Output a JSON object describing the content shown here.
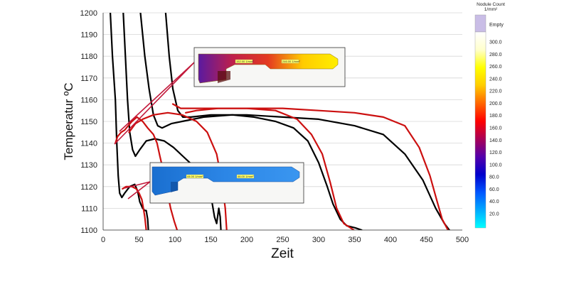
{
  "chart_data": {
    "type": "line",
    "xlabel": "Zeit",
    "ylabel": "Temperatur ºC",
    "xlim": [
      0,
      500
    ],
    "ylim": [
      1100,
      1200
    ],
    "x_ticks": [
      "0",
      "50",
      "100",
      "150",
      "200",
      "250",
      "300",
      "350",
      "400",
      "450",
      "500"
    ],
    "y_ticks": [
      "1100",
      "1110",
      "1120",
      "1130",
      "1140",
      "1150",
      "1160",
      "1170",
      "1180",
      "1190",
      "1200"
    ],
    "grid": "horizontal",
    "series": [
      {
        "color": "#000000",
        "points": [
          [
            10,
            1200
          ],
          [
            13,
            1180
          ],
          [
            17,
            1160
          ],
          [
            19,
            1140
          ],
          [
            21,
            1125
          ],
          [
            23,
            1117
          ],
          [
            26,
            1115
          ],
          [
            30,
            1117
          ],
          [
            37,
            1120
          ],
          [
            44,
            1121
          ],
          [
            48,
            1118
          ],
          [
            51,
            1113
          ],
          [
            55,
            1110
          ],
          [
            58,
            1109
          ],
          [
            60,
            1109
          ],
          [
            62,
            1105
          ],
          [
            63,
            1100
          ]
        ]
      },
      {
        "color": "#000000",
        "points": [
          [
            28,
            1200
          ],
          [
            31,
            1180
          ],
          [
            34,
            1160
          ],
          [
            37,
            1145
          ],
          [
            41,
            1137
          ],
          [
            45,
            1134
          ],
          [
            51,
            1137
          ],
          [
            60,
            1141
          ],
          [
            72,
            1142
          ],
          [
            85,
            1141
          ],
          [
            98,
            1138
          ],
          [
            111,
            1134
          ],
          [
            124,
            1130
          ],
          [
            136,
            1126
          ],
          [
            144,
            1123
          ],
          [
            149,
            1118
          ],
          [
            152,
            1112
          ],
          [
            155,
            1106
          ],
          [
            158,
            1103
          ],
          [
            161,
            1110
          ],
          [
            163,
            1106
          ],
          [
            164,
            1100
          ]
        ]
      },
      {
        "color": "#000000",
        "points": [
          [
            52,
            1200
          ],
          [
            58,
            1180
          ],
          [
            64,
            1165
          ],
          [
            70,
            1153
          ],
          [
            76,
            1148
          ],
          [
            82,
            1147
          ],
          [
            95,
            1149
          ],
          [
            110,
            1150
          ],
          [
            140,
            1152
          ],
          [
            180,
            1153
          ],
          [
            210,
            1152
          ],
          [
            240,
            1150
          ],
          [
            265,
            1147
          ],
          [
            285,
            1141
          ],
          [
            300,
            1131
          ],
          [
            312,
            1120
          ],
          [
            320,
            1112
          ],
          [
            330,
            1105
          ],
          [
            339,
            1102
          ],
          [
            351,
            1101
          ],
          [
            360,
            1100
          ]
        ]
      },
      {
        "color": "#000000",
        "points": [
          [
            87,
            1200
          ],
          [
            92,
            1180
          ],
          [
            97,
            1165
          ],
          [
            104,
            1155
          ],
          [
            111,
            1152
          ],
          [
            122,
            1152
          ],
          [
            150,
            1153
          ],
          [
            200,
            1153
          ],
          [
            250,
            1152
          ],
          [
            300,
            1151
          ],
          [
            350,
            1148
          ],
          [
            390,
            1144
          ],
          [
            420,
            1135
          ],
          [
            445,
            1123
          ],
          [
            463,
            1110
          ],
          [
            475,
            1103
          ],
          [
            482,
            1100
          ]
        ]
      },
      {
        "color": "#cc1010",
        "points": [
          [
            17,
            1140
          ],
          [
            20,
            1143
          ],
          [
            25,
            1145
          ],
          [
            30,
            1146
          ],
          [
            35,
            1148
          ],
          [
            40,
            1150
          ],
          [
            47,
            1152
          ],
          [
            55,
            1150
          ],
          [
            62,
            1147
          ],
          [
            70,
            1144
          ],
          [
            75,
            1140
          ],
          [
            79,
            1134
          ],
          [
            84,
            1127
          ],
          [
            89,
            1118
          ],
          [
            94,
            1110
          ],
          [
            99,
            1104
          ],
          [
            103,
            1100
          ]
        ]
      },
      {
        "color": "#cc1010",
        "points": [
          [
            27,
            1119
          ],
          [
            32,
            1120
          ],
          [
            40,
            1120
          ],
          [
            46,
            1119
          ],
          [
            50,
            1117
          ],
          [
            54,
            1114
          ],
          [
            56,
            1110
          ],
          [
            58,
            1106
          ],
          [
            59,
            1103
          ],
          [
            60,
            1100
          ]
        ]
      },
      {
        "color": "#cc1010",
        "points": [
          [
            36,
            1145
          ],
          [
            45,
            1149
          ],
          [
            55,
            1151
          ],
          [
            70,
            1153
          ],
          [
            90,
            1154
          ],
          [
            110,
            1153
          ],
          [
            130,
            1150
          ],
          [
            145,
            1145
          ],
          [
            158,
            1135
          ],
          [
            165,
            1123
          ],
          [
            170,
            1110
          ],
          [
            172,
            1100
          ]
        ]
      },
      {
        "color": "#cc1010",
        "points": [
          [
            115,
            1154
          ],
          [
            130,
            1155
          ],
          [
            160,
            1156
          ],
          [
            200,
            1156
          ],
          [
            240,
            1155
          ],
          [
            270,
            1151
          ],
          [
            290,
            1144
          ],
          [
            305,
            1135
          ],
          [
            316,
            1122
          ],
          [
            325,
            1110
          ],
          [
            335,
            1103
          ],
          [
            349,
            1100
          ]
        ]
      },
      {
        "color": "#cc1010",
        "points": [
          [
            97,
            1158
          ],
          [
            108,
            1156
          ],
          [
            130,
            1156
          ],
          [
            200,
            1156
          ],
          [
            250,
            1156
          ],
          [
            300,
            1155
          ],
          [
            350,
            1154
          ],
          [
            390,
            1152
          ],
          [
            420,
            1148
          ],
          [
            440,
            1138
          ],
          [
            455,
            1125
          ],
          [
            465,
            1113
          ],
          [
            472,
            1105
          ],
          [
            480,
            1100
          ]
        ]
      }
    ],
    "colorbar": {
      "title_line1": "Nodule Count",
      "title_line2": "1/mm²",
      "empty_label": "Empty",
      "ticks": [
        "20.0",
        "40.0",
        "60.0",
        "80.0",
        "100.0",
        "120.0",
        "140.0",
        "160.0",
        "180.0",
        "200.0",
        "220.0",
        "240.0",
        "260.0",
        "280.0",
        "300.0"
      ],
      "colors": [
        "#00ffff",
        "#00aaff",
        "#0055ff",
        "#0000cc",
        "#5500aa",
        "#aa0055",
        "#ff0000",
        "#ff6600",
        "#ffcc00",
        "#ffff00",
        "#ffffcc",
        "#ffffff"
      ]
    },
    "insets": [
      {
        "name": "upper",
        "tag_left": "152.00 1/mm²",
        "tag_right": "246.00 1/mm²",
        "gradient": [
          "#5a1aa0",
          "#c0204a",
          "#e43a20",
          "#ffcc00",
          "#ffee00"
        ]
      },
      {
        "name": "lower",
        "tag_left": "44.00 1/mm²",
        "tag_right": "46.00 1/mm²",
        "gradient": [
          "#1a6fd0",
          "#2c86e6",
          "#3a96f0"
        ]
      }
    ]
  }
}
